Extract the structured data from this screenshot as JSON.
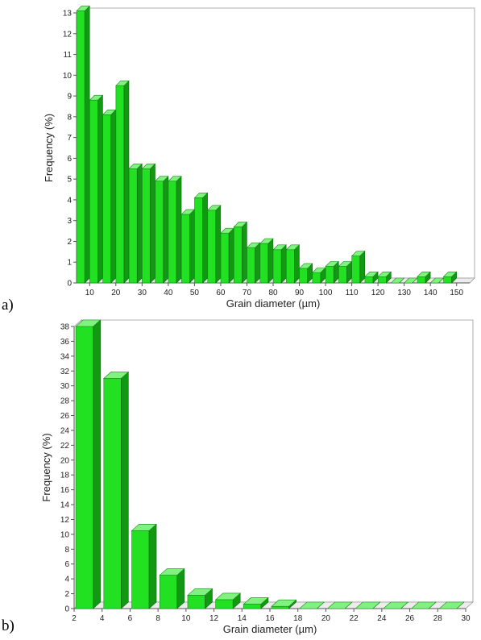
{
  "chart_data": [
    {
      "panel_label": "a)",
      "type": "bar",
      "style": "3d",
      "xlabel": "Grain diameter (µm)",
      "ylabel": "Frequency (%)",
      "ylim": [
        0,
        13
      ],
      "yticks": [
        0,
        1,
        2,
        3,
        4,
        5,
        6,
        7,
        8,
        9,
        10,
        11,
        12,
        13
      ],
      "x_tick_labels": [
        "10",
        "20",
        "30",
        "40",
        "50",
        "60",
        "70",
        "80",
        "90",
        "100",
        "110",
        "120",
        "130",
        "140",
        "150"
      ],
      "x_bin_width": 5,
      "x": [
        7.5,
        12.5,
        17.5,
        22.5,
        27.5,
        32.5,
        37.5,
        42.5,
        47.5,
        52.5,
        57.5,
        62.5,
        67.5,
        72.5,
        77.5,
        82.5,
        87.5,
        92.5,
        97.5,
        102.5,
        107.5,
        112.5,
        117.5,
        122.5,
        127.5,
        132.5,
        137.5,
        142.5,
        147.5
      ],
      "values": [
        13.1,
        8.8,
        8.1,
        9.5,
        5.5,
        5.5,
        4.9,
        4.9,
        3.3,
        4.1,
        3.5,
        2.4,
        2.7,
        1.7,
        1.9,
        1.6,
        1.6,
        0.7,
        0.5,
        0.8,
        0.8,
        1.3,
        0.3,
        0.3,
        0.0,
        0.0,
        0.3,
        0.0,
        0.3
      ],
      "bar_color": "#33dd33",
      "grid": false
    },
    {
      "panel_label": "b)",
      "type": "bar",
      "style": "3d",
      "xlabel": "Grain diameter (µm)",
      "ylabel": "Frequency (%)",
      "ylim": [
        0,
        38
      ],
      "yticks": [
        0,
        2,
        4,
        6,
        8,
        10,
        12,
        14,
        16,
        18,
        20,
        22,
        24,
        26,
        28,
        30,
        32,
        34,
        36,
        38
      ],
      "x_tick_labels": [
        "2",
        "4",
        "6",
        "8",
        "10",
        "12",
        "14",
        "16",
        "18",
        "20",
        "22",
        "24",
        "26",
        "28",
        "30"
      ],
      "x": [
        3,
        5,
        7,
        9,
        11,
        13,
        15,
        17,
        19,
        21,
        23,
        25,
        27,
        29
      ],
      "values": [
        38.0,
        31.0,
        10.5,
        4.5,
        1.8,
        1.2,
        0.6,
        0.3,
        0.0,
        0.0,
        0.0,
        0.0,
        0.0,
        0.0
      ],
      "bar_color": "#33dd33",
      "grid": false
    }
  ]
}
